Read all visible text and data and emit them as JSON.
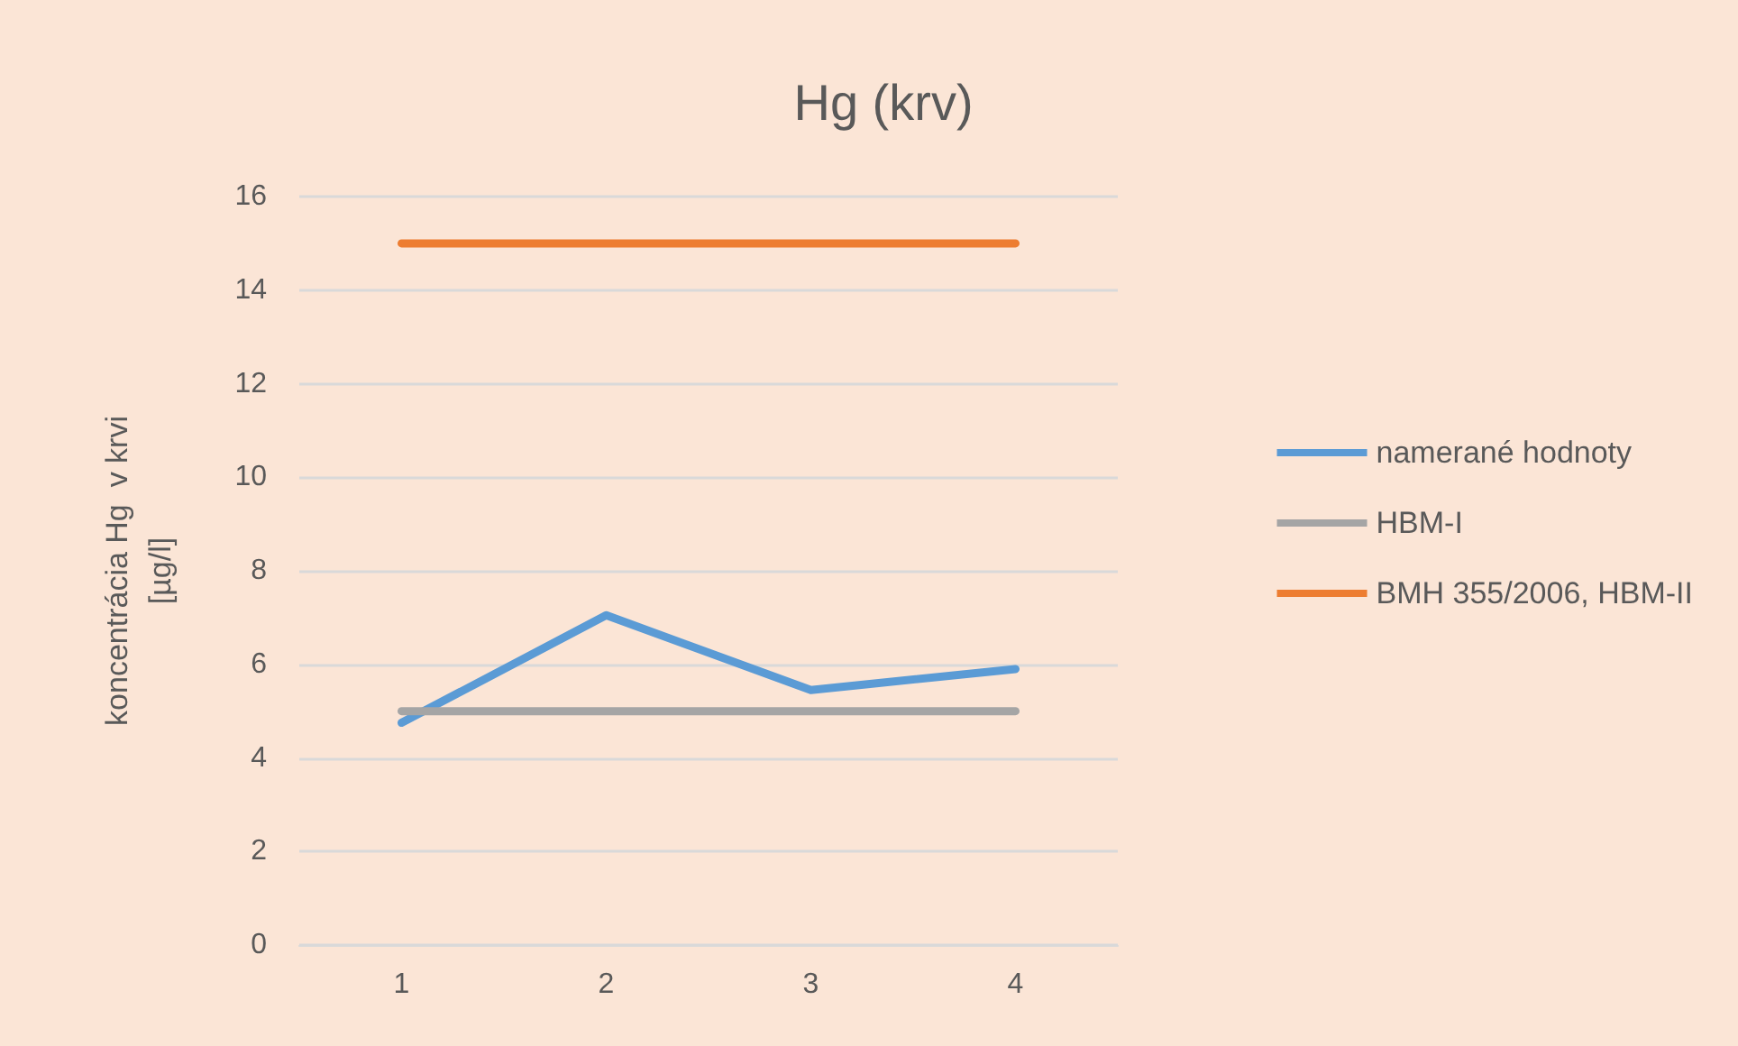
{
  "chart_data": {
    "type": "line",
    "title": "Hg (krv)",
    "ylabel": "koncentrácia Hg  v krvi\n[µg/l]",
    "categories": [
      "1",
      "2",
      "3",
      "4"
    ],
    "series": [
      {
        "name": "namerané hodnoty",
        "color": "#5b9bd5",
        "values": [
          4.75,
          7.05,
          5.45,
          5.9
        ]
      },
      {
        "name": "HBM-I",
        "color": "#a5a5a5",
        "values": [
          5,
          5,
          5,
          5
        ]
      },
      {
        "name": "BMH 355/2006, HBM-II",
        "color": "#ed7d31",
        "values": [
          15,
          15,
          15,
          15
        ]
      }
    ],
    "ylim": [
      0,
      16
    ],
    "yticks": [
      0,
      2,
      4,
      6,
      8,
      10,
      12,
      14,
      16
    ],
    "grid": "y",
    "legend": "right",
    "marker": "none",
    "line_style": "solid"
  }
}
